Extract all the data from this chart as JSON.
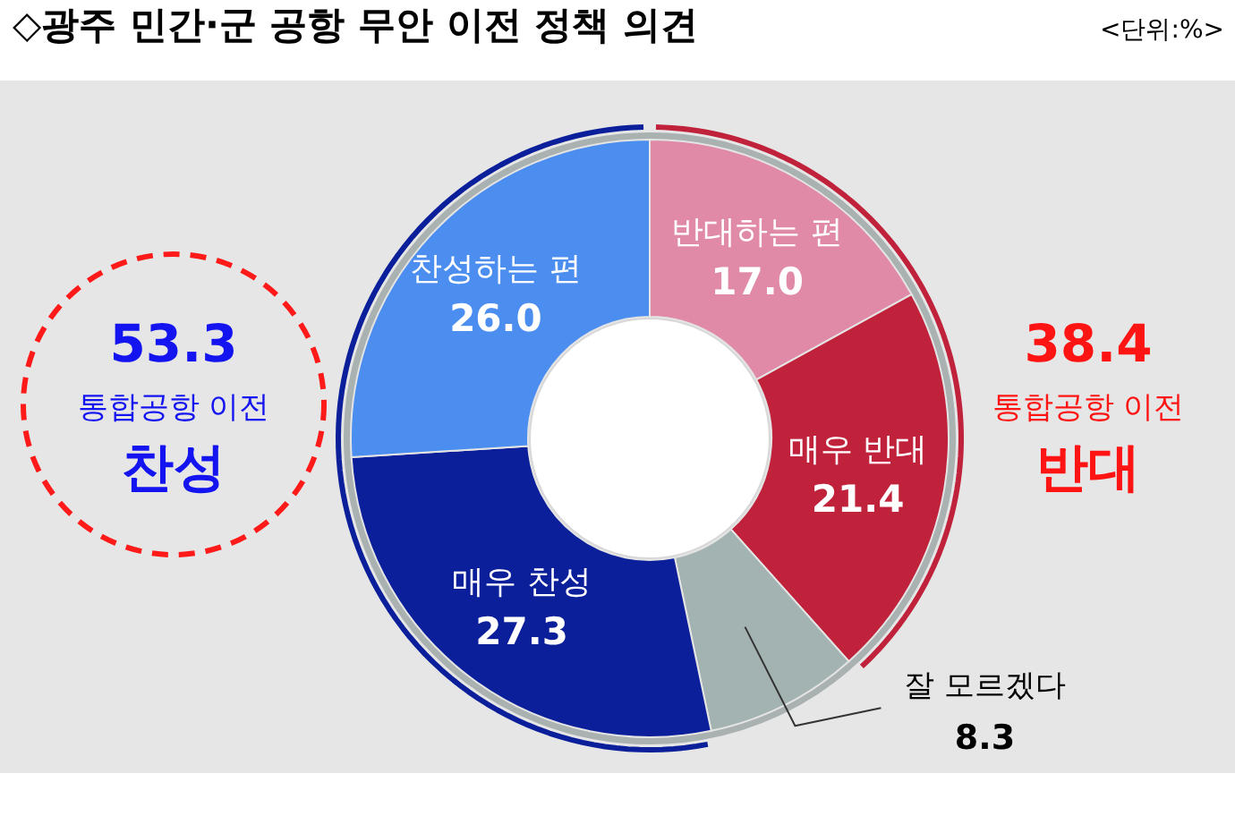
{
  "chart_data": {
    "type": "donut",
    "title": "◇광주 민간·군 공항 무안 이전 정책 의견",
    "categories": [
      "반대하는 편",
      "매우 반대",
      "잘 모르겠다",
      "매우 찬성",
      "찬성하는 편"
    ],
    "values": [
      17.0,
      21.4,
      8.3,
      27.3,
      26.0
    ],
    "value_labels": [
      "17.0",
      "21.4",
      "8.3",
      "27.3",
      "26.0"
    ],
    "colors": [
      "#e08aa8",
      "#c0223c",
      "#a3b3b1",
      "#0b1f9a",
      "#4b8ef0"
    ],
    "annotations": [
      "<단위:%>",
      "53.3",
      "통합공항 이전",
      "찬성",
      "38.4",
      "통합공항 이전",
      "반대"
    ]
  }
}
